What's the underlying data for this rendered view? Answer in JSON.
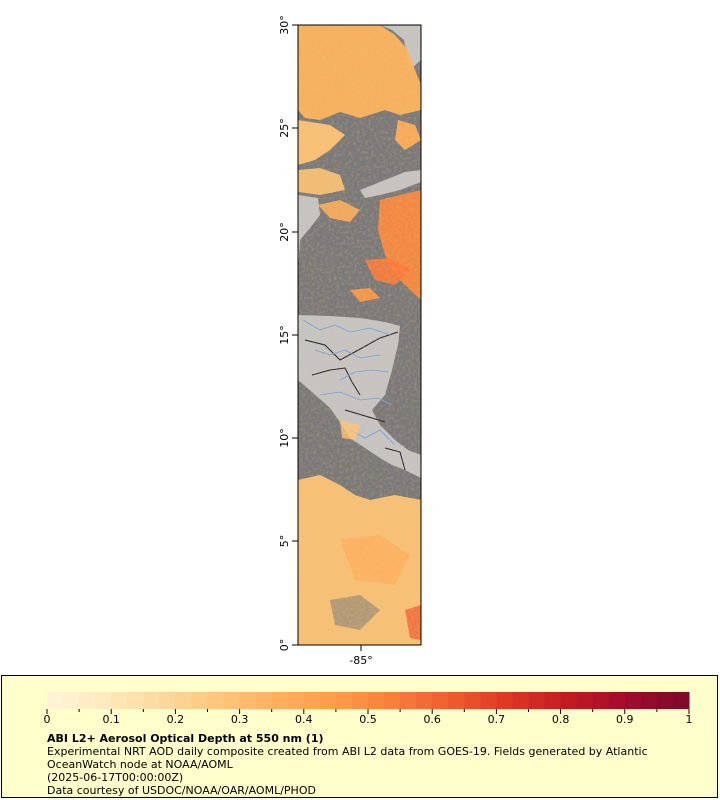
{
  "map": {
    "lat_ticks": [
      "0°",
      "5°",
      "10°",
      "15°",
      "20°",
      "25°",
      "30°"
    ],
    "lon_ticks": [
      "-85°"
    ],
    "colors": {
      "ocean_nodata": "#7a7a7a",
      "land": "#c4c4c4",
      "borders": "#222222",
      "rivers": "#6f9fd8"
    }
  },
  "legend": {
    "tick_labels": [
      "0",
      "0.1",
      "0.2",
      "0.3",
      "0.4",
      "0.5",
      "0.6",
      "0.7",
      "0.8",
      "0.9",
      "1"
    ],
    "range": [
      0,
      1
    ],
    "colormap": [
      "#fff3d6",
      "#fee8b8",
      "#fdd69a",
      "#fdc477",
      "#fdae5b",
      "#fc9a48",
      "#f87c3b",
      "#ee5a2e",
      "#dd3524",
      "#c41a22",
      "#a30c2c",
      "#7f0a2a"
    ],
    "title": "ABI L2+ Aerosol Optical Depth at 550 nm (1)",
    "line1": "Experimental NRT AOD daily composite created from ABI L2 data from GOES-19. Fields generated by Atlantic OceanWatch node at NOAA/AOML",
    "line2": "(2025-06-17T00:00:00Z)",
    "line3": "Data courtesy of USDOC/NOAA/OAR/AOML/PHOD",
    "background": "#ffffcc"
  }
}
